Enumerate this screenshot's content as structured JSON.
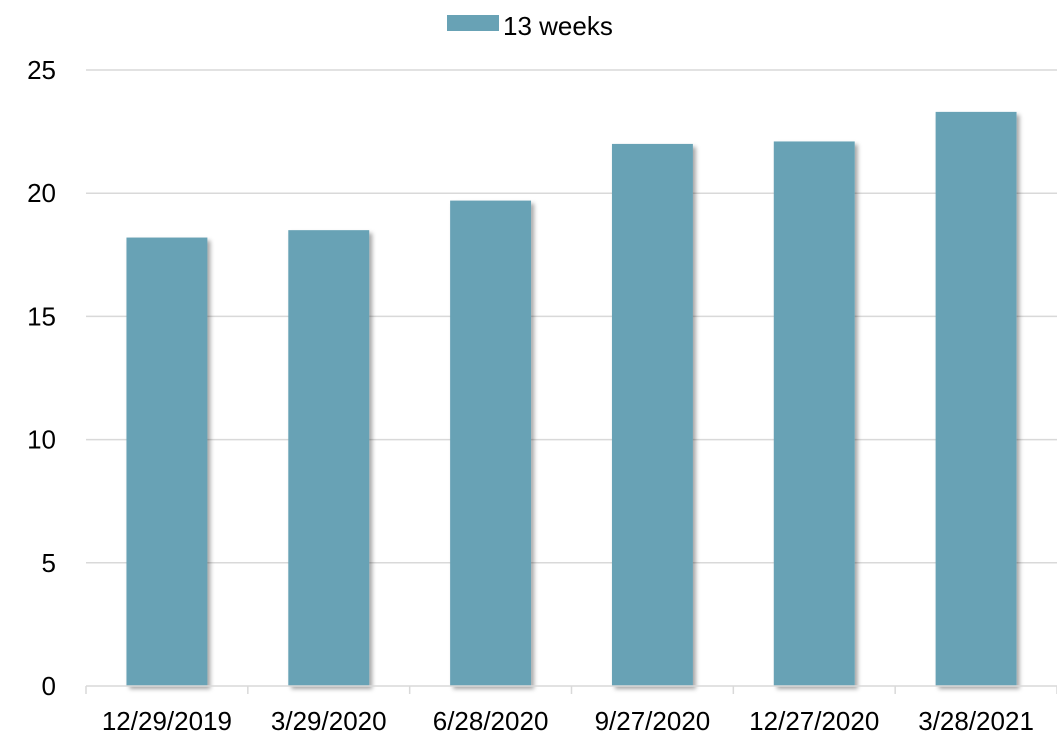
{
  "chart_data": {
    "type": "bar",
    "categories": [
      "12/29/2019",
      "3/29/2020",
      "6/28/2020",
      "9/27/2020",
      "12/27/2020",
      "3/28/2021"
    ],
    "series": [
      {
        "name": "13 weeks",
        "values": [
          18.2,
          18.5,
          19.7,
          22.0,
          22.1,
          23.3
        ],
        "color": "#68a2b5"
      }
    ],
    "title": "",
    "xlabel": "",
    "ylabel": "",
    "ylim": [
      0,
      25
    ],
    "yticks": [
      "0",
      "5",
      "10",
      "15",
      "20",
      "25"
    ],
    "grid": true,
    "legend": "top-center"
  }
}
